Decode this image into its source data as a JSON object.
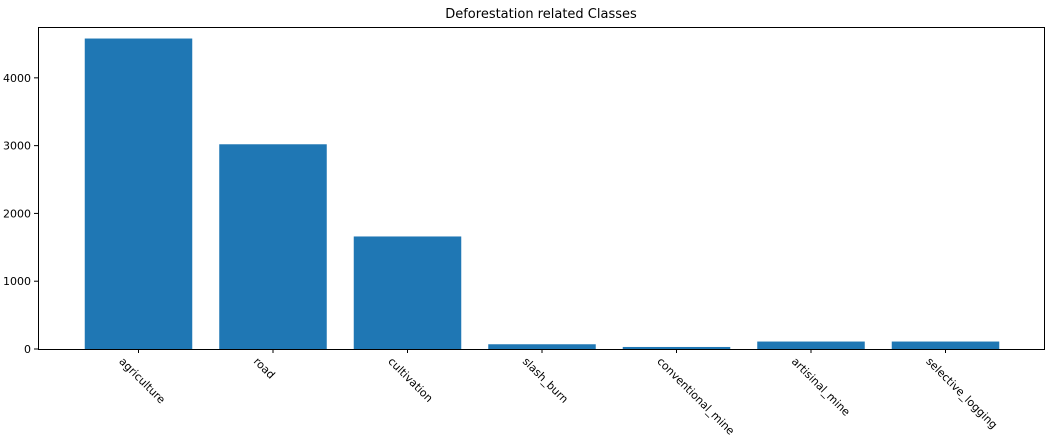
{
  "chart_data": {
    "type": "bar",
    "title": "Deforestation related Classes",
    "xlabel": "",
    "ylabel": "",
    "categories": [
      "agriculture",
      "road",
      "cultivation",
      "slash_burn",
      "conventional_mine",
      "artisinal_mine",
      "selective_logging"
    ],
    "values": [
      4580,
      3020,
      1660,
      70,
      30,
      110,
      110
    ],
    "ylim": [
      0,
      4750
    ],
    "yticks": [
      0,
      1000,
      2000,
      3000,
      4000
    ],
    "bar_color": "#1f77b4",
    "grid": false,
    "legend": false
  }
}
